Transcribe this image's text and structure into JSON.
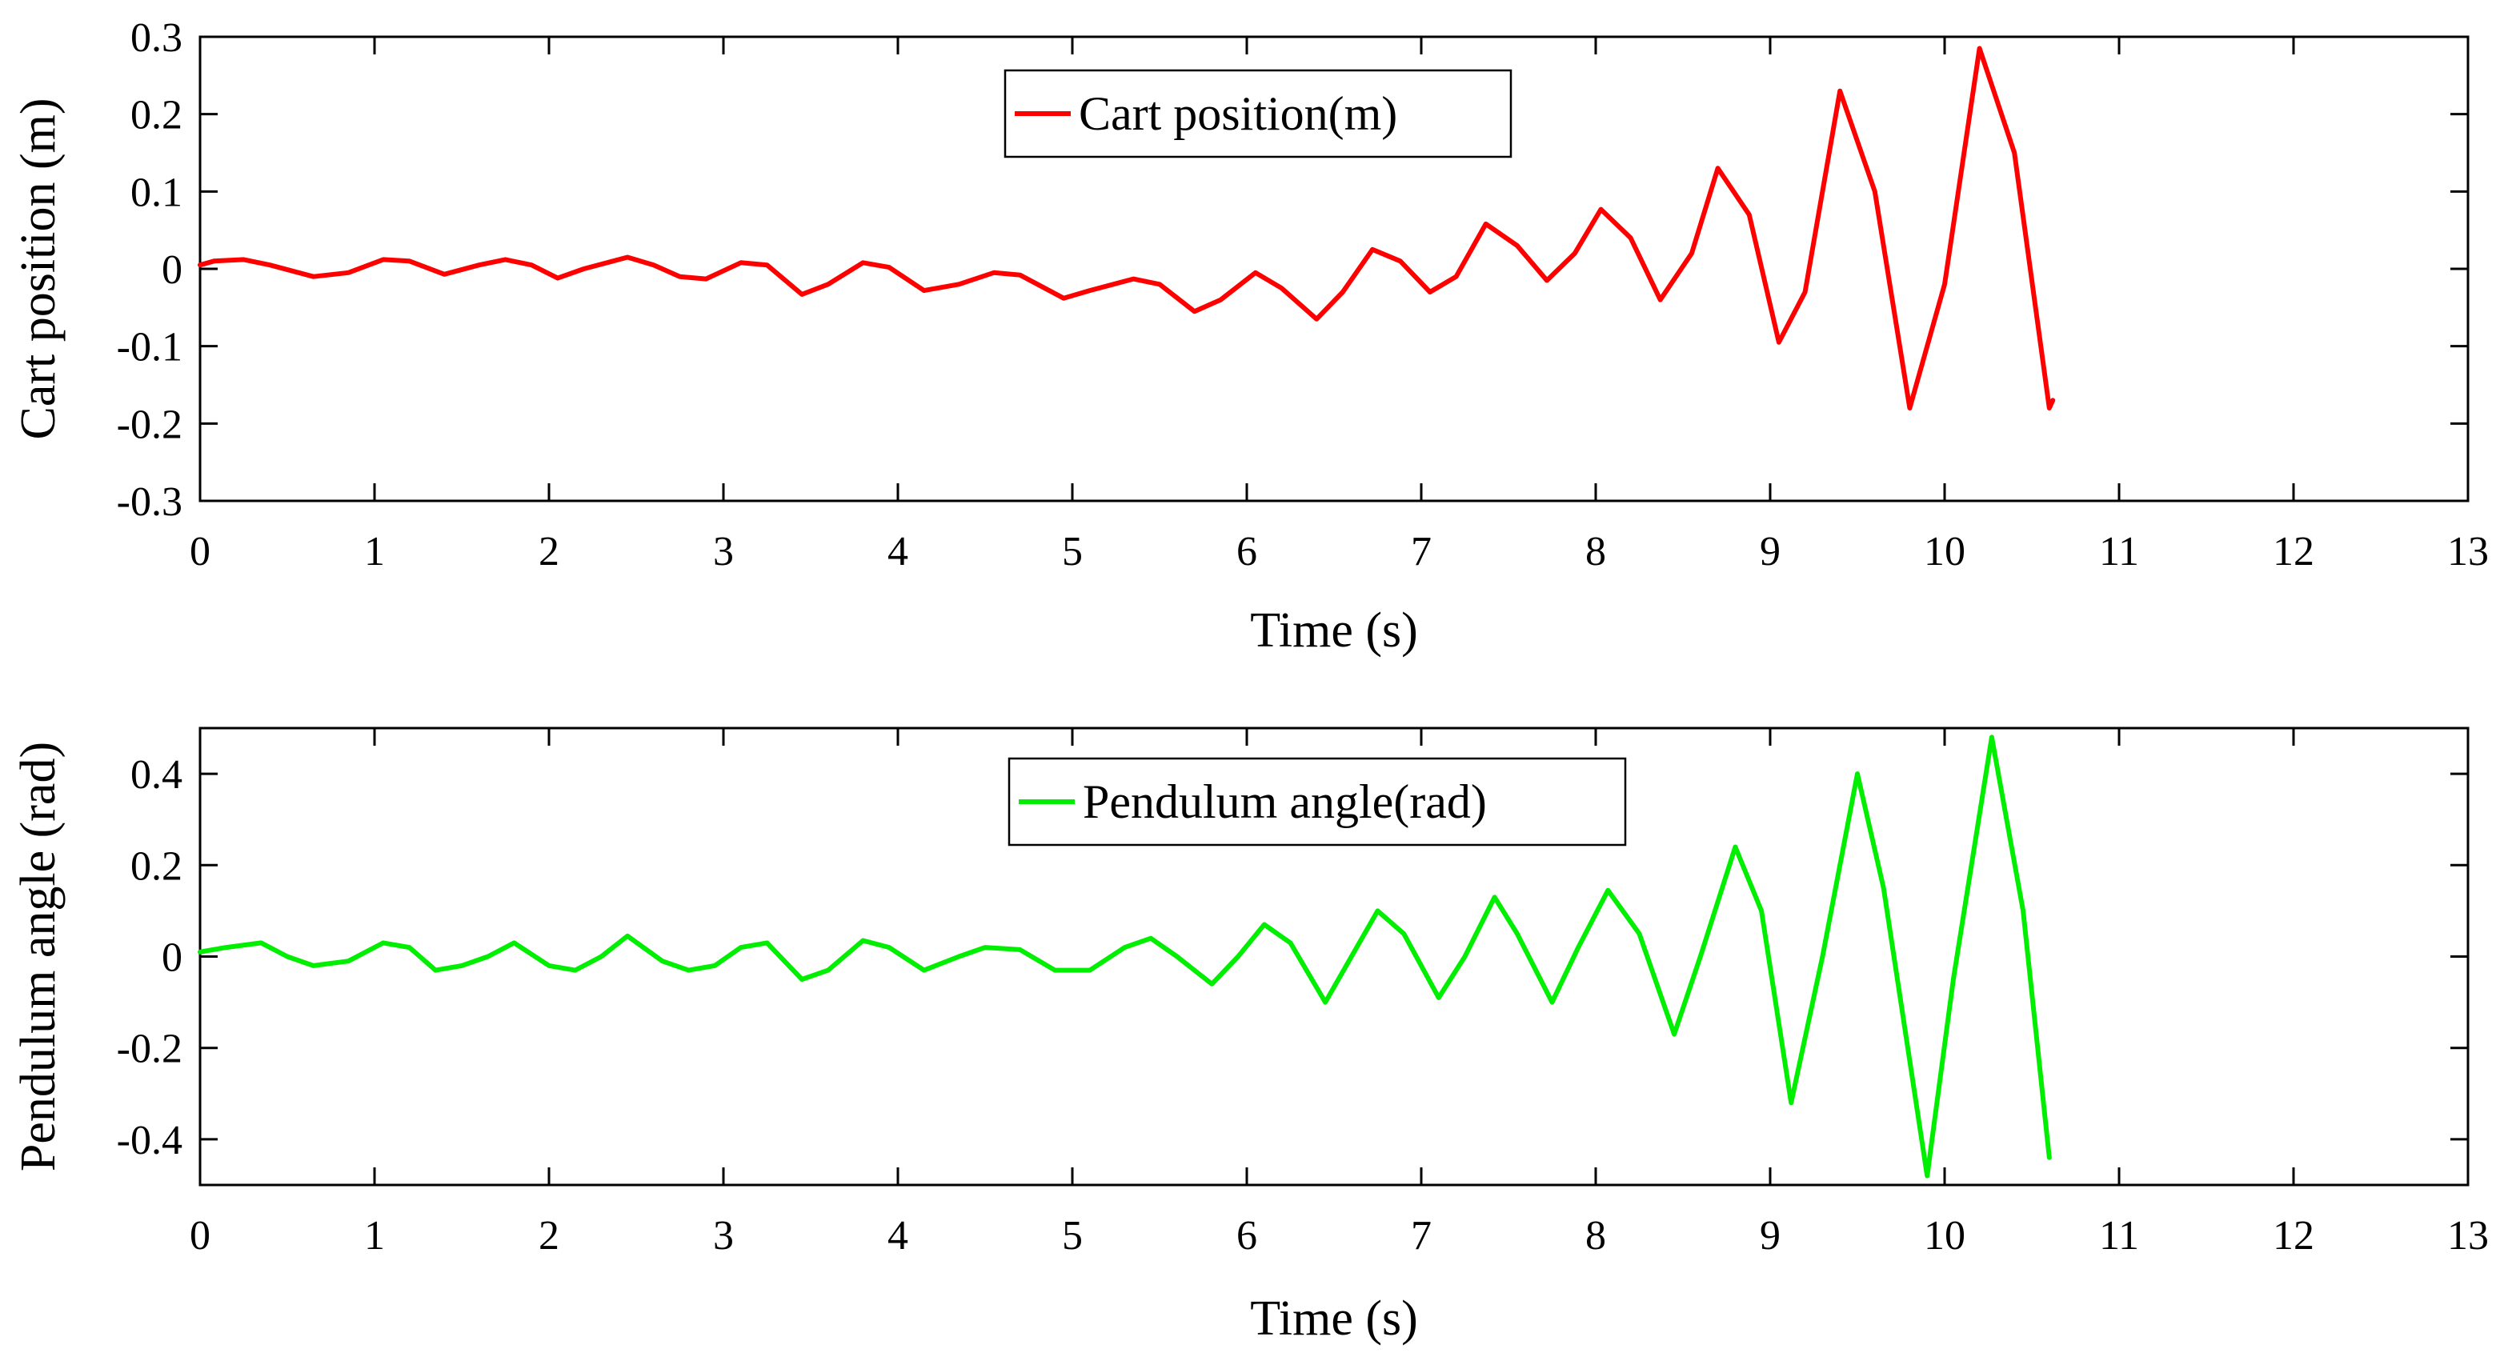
{
  "chart_data": [
    {
      "type": "line",
      "title": "",
      "xlabel": "Time (s)",
      "ylabel": "Cart position (m)",
      "xlim": [
        0,
        13
      ],
      "ylim": [
        -0.3,
        0.3
      ],
      "xticks": [
        "0",
        "1",
        "2",
        "3",
        "4",
        "5",
        "6",
        "7",
        "8",
        "9",
        "10",
        "11",
        "12",
        "13"
      ],
      "yticks": [
        "-0.3",
        "-0.2",
        "-0.1",
        "0",
        "0.1",
        "0.2",
        "0.3"
      ],
      "grid": false,
      "legend_position": "top-center",
      "series": [
        {
          "name": "Cart position(m)",
          "color": "#ff0000",
          "x": [
            0.0,
            0.08,
            0.25,
            0.4,
            0.65,
            0.85,
            1.05,
            1.2,
            1.4,
            1.6,
            1.75,
            1.9,
            2.05,
            2.2,
            2.45,
            2.6,
            2.75,
            2.9,
            3.1,
            3.25,
            3.45,
            3.6,
            3.8,
            3.95,
            4.15,
            4.35,
            4.55,
            4.7,
            4.95,
            5.1,
            5.35,
            5.5,
            5.7,
            5.85,
            6.05,
            6.2,
            6.4,
            6.55,
            6.72,
            6.88,
            7.05,
            7.2,
            7.37,
            7.55,
            7.72,
            7.88,
            8.03,
            8.2,
            8.37,
            8.55,
            8.7,
            8.88,
            9.05,
            9.2,
            9.4,
            9.6,
            9.8,
            10.0,
            10.2,
            10.4,
            10.6,
            10.62
          ],
          "y": [
            0.005,
            0.01,
            0.012,
            0.005,
            -0.01,
            -0.005,
            0.012,
            0.01,
            -0.007,
            0.005,
            0.012,
            0.005,
            -0.012,
            0.0,
            0.015,
            0.005,
            -0.01,
            -0.013,
            0.008,
            0.005,
            -0.033,
            -0.02,
            0.008,
            0.002,
            -0.028,
            -0.02,
            -0.005,
            -0.008,
            -0.038,
            -0.028,
            -0.013,
            -0.02,
            -0.055,
            -0.04,
            -0.005,
            -0.025,
            -0.065,
            -0.03,
            0.025,
            0.01,
            -0.03,
            -0.01,
            0.058,
            0.03,
            -0.015,
            0.02,
            0.077,
            0.04,
            -0.04,
            0.02,
            0.13,
            0.07,
            -0.095,
            -0.03,
            0.23,
            0.1,
            -0.18,
            -0.02,
            0.285,
            0.15,
            -0.18,
            -0.17
          ]
        }
      ]
    },
    {
      "type": "line",
      "title": "",
      "xlabel": "Time (s)",
      "ylabel": "Pendulum angle (rad)",
      "xlim": [
        0,
        13
      ],
      "ylim": [
        -0.5,
        0.5
      ],
      "xticks": [
        "0",
        "1",
        "2",
        "3",
        "4",
        "5",
        "6",
        "7",
        "8",
        "9",
        "10",
        "11",
        "12",
        "13"
      ],
      "yticks": [
        "-0.4",
        "-0.2",
        "0",
        "0.2",
        "0.4"
      ],
      "grid": false,
      "legend_position": "top-center",
      "series": [
        {
          "name": "Pendulum angle(rad)",
          "color": "#00ee00",
          "x": [
            0.0,
            0.15,
            0.35,
            0.5,
            0.65,
            0.85,
            1.05,
            1.2,
            1.35,
            1.5,
            1.65,
            1.8,
            2.0,
            2.15,
            2.3,
            2.45,
            2.65,
            2.8,
            2.95,
            3.1,
            3.25,
            3.45,
            3.6,
            3.8,
            3.95,
            4.15,
            4.35,
            4.5,
            4.7,
            4.9,
            5.1,
            5.3,
            5.45,
            5.6,
            5.8,
            5.95,
            6.1,
            6.25,
            6.45,
            6.6,
            6.75,
            6.9,
            7.1,
            7.25,
            7.42,
            7.55,
            7.75,
            7.9,
            8.07,
            8.25,
            8.45,
            8.6,
            8.8,
            8.95,
            9.12,
            9.3,
            9.5,
            9.65,
            9.9,
            10.05,
            10.27,
            10.45,
            10.6
          ],
          "y": [
            0.01,
            0.02,
            0.03,
            0.0,
            -0.02,
            -0.01,
            0.03,
            0.02,
            -0.03,
            -0.02,
            0.0,
            0.03,
            -0.02,
            -0.03,
            0.0,
            0.045,
            -0.01,
            -0.03,
            -0.02,
            0.02,
            0.03,
            -0.05,
            -0.03,
            0.035,
            0.02,
            -0.03,
            0.0,
            0.02,
            0.015,
            -0.03,
            -0.03,
            0.02,
            0.04,
            0.0,
            -0.06,
            0.0,
            0.07,
            0.03,
            -0.1,
            0.0,
            0.1,
            0.05,
            -0.09,
            0.0,
            0.13,
            0.05,
            -0.1,
            0.02,
            0.145,
            0.05,
            -0.17,
            0.0,
            0.24,
            0.1,
            -0.32,
            0.0,
            0.4,
            0.15,
            -0.48,
            -0.05,
            0.48,
            0.1,
            -0.44
          ]
        }
      ]
    }
  ]
}
